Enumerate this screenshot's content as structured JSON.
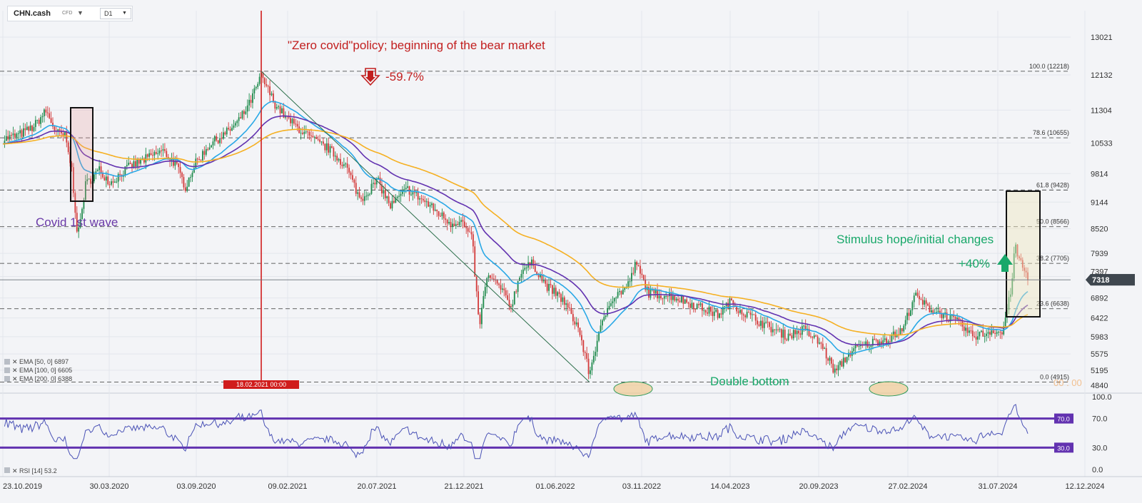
{
  "toolbar": {
    "symbol": "CHN.cash",
    "symbol_type": "CFD",
    "timeframe": "D1",
    "caret": "▼"
  },
  "colors": {
    "ema50": "#29a8e6",
    "ema100": "#6232b0",
    "ema200": "#f5b022",
    "bull": "#1f8a4c",
    "bear": "#d33a3a",
    "rsi": "#4a52b6",
    "rsi_band": "#6232b0",
    "annot_red": "#c21f1f",
    "annot_green": "#19a86a",
    "annot_purple": "#6a3aa8"
  },
  "chart_data": {
    "type": "candlestick",
    "x_tick_labels": [
      "23.10.2019",
      "30.03.2020",
      "03.09.2020",
      "09.02.2021",
      "20.07.2021",
      "21.12.2021",
      "01.06.2022",
      "03.11.2022",
      "14.04.2023",
      "20.09.2023",
      "27.02.2024",
      "31.07.2024",
      "12.12.2024"
    ],
    "y_ticks": [
      13021,
      12132,
      11304,
      10533,
      9814,
      9144,
      8520,
      7939,
      7397,
      6892,
      6422,
      5983,
      5575,
      5195,
      4840
    ],
    "ylim": [
      4840,
      13021
    ],
    "last_price": 7318,
    "fib_levels": [
      {
        "label": "100.0 (12218)",
        "value": 12218
      },
      {
        "label": "78.6 (10655)",
        "value": 10655
      },
      {
        "label": "61.8 (9428)",
        "value": 9428
      },
      {
        "label": "50.0 (8566)",
        "value": 8566
      },
      {
        "label": "38.2 (7705)",
        "value": 7705
      },
      {
        "label": "23.6 (6638)",
        "value": 6638
      },
      {
        "label": "0.0 (4915)",
        "value": 4915
      }
    ],
    "anchors": [
      {
        "d": 0,
        "v": 10620
      },
      {
        "d": 18,
        "v": 10720
      },
      {
        "d": 35,
        "v": 10900
      },
      {
        "d": 50,
        "v": 11280
      },
      {
        "d": 62,
        "v": 10780
      },
      {
        "d": 72,
        "v": 10700
      },
      {
        "d": 80,
        "v": 9900
      },
      {
        "d": 87,
        "v": 8300
      },
      {
        "d": 96,
        "v": 9550
      },
      {
        "d": 112,
        "v": 9900
      },
      {
        "d": 125,
        "v": 9600
      },
      {
        "d": 145,
        "v": 9950
      },
      {
        "d": 165,
        "v": 10150
      },
      {
        "d": 185,
        "v": 10350
      },
      {
        "d": 200,
        "v": 10050
      },
      {
        "d": 212,
        "v": 9500
      },
      {
        "d": 222,
        "v": 10000
      },
      {
        "d": 240,
        "v": 10500
      },
      {
        "d": 258,
        "v": 10750
      },
      {
        "d": 272,
        "v": 11000
      },
      {
        "d": 285,
        "v": 11400
      },
      {
        "d": 300,
        "v": 12100
      },
      {
        "d": 316,
        "v": 11450
      },
      {
        "d": 330,
        "v": 11100
      },
      {
        "d": 345,
        "v": 10850
      },
      {
        "d": 360,
        "v": 10600
      },
      {
        "d": 378,
        "v": 10400
      },
      {
        "d": 398,
        "v": 10000
      },
      {
        "d": 415,
        "v": 9200
      },
      {
        "d": 435,
        "v": 9650
      },
      {
        "d": 450,
        "v": 9050
      },
      {
        "d": 470,
        "v": 9450
      },
      {
        "d": 490,
        "v": 9150
      },
      {
        "d": 505,
        "v": 8900
      },
      {
        "d": 520,
        "v": 8650
      },
      {
        "d": 532,
        "v": 8700
      },
      {
        "d": 545,
        "v": 8250
      },
      {
        "d": 553,
        "v": 6200
      },
      {
        "d": 562,
        "v": 7400
      },
      {
        "d": 575,
        "v": 7200
      },
      {
        "d": 590,
        "v": 6700
      },
      {
        "d": 602,
        "v": 7550
      },
      {
        "d": 615,
        "v": 7700
      },
      {
        "d": 630,
        "v": 7200
      },
      {
        "d": 650,
        "v": 6850
      },
      {
        "d": 668,
        "v": 6200
      },
      {
        "d": 681,
        "v": 5100
      },
      {
        "d": 690,
        "v": 5900
      },
      {
        "d": 705,
        "v": 6850
      },
      {
        "d": 725,
        "v": 7150
      },
      {
        "d": 735,
        "v": 7700
      },
      {
        "d": 750,
        "v": 7000
      },
      {
        "d": 775,
        "v": 6950
      },
      {
        "d": 800,
        "v": 6750
      },
      {
        "d": 830,
        "v": 6500
      },
      {
        "d": 845,
        "v": 6800
      },
      {
        "d": 860,
        "v": 6550
      },
      {
        "d": 890,
        "v": 6200
      },
      {
        "d": 910,
        "v": 6000
      },
      {
        "d": 930,
        "v": 6150
      },
      {
        "d": 950,
        "v": 5800
      },
      {
        "d": 966,
        "v": 5150
      },
      {
        "d": 985,
        "v": 5650
      },
      {
        "d": 1010,
        "v": 5850
      },
      {
        "d": 1030,
        "v": 5950
      },
      {
        "d": 1045,
        "v": 6150
      },
      {
        "d": 1058,
        "v": 6950
      },
      {
        "d": 1075,
        "v": 6650
      },
      {
        "d": 1092,
        "v": 6500
      },
      {
        "d": 1110,
        "v": 6300
      },
      {
        "d": 1125,
        "v": 6000
      },
      {
        "d": 1140,
        "v": 6050
      },
      {
        "d": 1150,
        "v": 6150
      },
      {
        "d": 1160,
        "v": 6050
      },
      {
        "d": 1170,
        "v": 7000
      },
      {
        "d": 1175,
        "v": 8100
      },
      {
        "d": 1180,
        "v": 7800
      },
      {
        "d": 1190,
        "v": 7350
      }
    ],
    "total_days": 1190,
    "rsi": {
      "name": "RSI",
      "period": 14,
      "value": 53.2,
      "levels": [
        70,
        30
      ],
      "y_ticks": [
        "100.0",
        "70.0",
        "30.0",
        "0.0"
      ]
    },
    "legend": [
      {
        "label": "EMA [50, 0] 6897",
        "period": 50
      },
      {
        "label": "EMA [100, 0] 6605",
        "period": 100
      },
      {
        "label": "EMA [200, 0] 6388",
        "period": 200
      }
    ],
    "rsi_legend": "RSI [14] 53.2",
    "vline_label": "18.02.2021 00:00",
    "vline_day": 300,
    "trendline": {
      "from_day": 300,
      "from": 12218,
      "to_day": 681,
      "to": 4915
    },
    "annotations": {
      "zero_covid": "\"Zero covid\"policy; beginning of the bear market",
      "drop": "-59.7%",
      "covid": "Covid 1st wave",
      "double_bottom": "Double bottom",
      "stimulus": "Stimulus hope/initial changes",
      "rise": "+40%",
      "faded": "00 : 00"
    }
  }
}
